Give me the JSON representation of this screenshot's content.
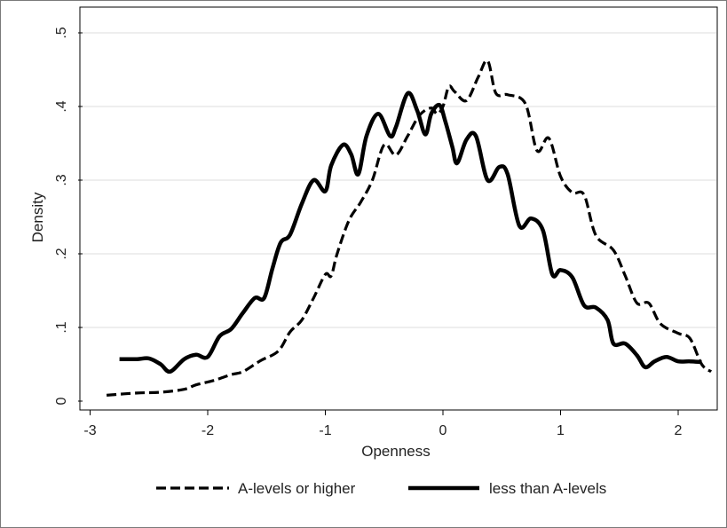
{
  "chart_data": {
    "type": "line",
    "title": "",
    "xlabel": "Openness",
    "ylabel": "Density",
    "xlim": [
      -3.1,
      2.3
    ],
    "ylim": [
      0,
      0.5
    ],
    "xticks": [
      -3,
      -2,
      -1,
      0,
      1,
      2
    ],
    "xtick_labels": [
      "-3",
      "-2",
      "-1",
      "0",
      "1",
      "2"
    ],
    "yticks": [
      0,
      0.1,
      0.2,
      0.3,
      0.4,
      0.5
    ],
    "ytick_labels": [
      "0",
      ".1",
      ".2",
      ".3",
      ".4",
      ".5"
    ],
    "grid": true,
    "legend": "bottom",
    "series": [
      {
        "name": "A-levels or higher",
        "style": "dashed",
        "color": "#000000",
        "points": [
          [
            -2.86,
            0.008
          ],
          [
            -2.6,
            0.011
          ],
          [
            -2.4,
            0.012
          ],
          [
            -2.2,
            0.016
          ],
          [
            -2.1,
            0.022
          ],
          [
            -1.95,
            0.028
          ],
          [
            -1.8,
            0.036
          ],
          [
            -1.7,
            0.04
          ],
          [
            -1.55,
            0.055
          ],
          [
            -1.4,
            0.068
          ],
          [
            -1.3,
            0.094
          ],
          [
            -1.2,
            0.11
          ],
          [
            -1.1,
            0.14
          ],
          [
            -1.0,
            0.172
          ],
          [
            -0.95,
            0.17
          ],
          [
            -0.9,
            0.2
          ],
          [
            -0.8,
            0.245
          ],
          [
            -0.7,
            0.27
          ],
          [
            -0.6,
            0.3
          ],
          [
            -0.5,
            0.348
          ],
          [
            -0.4,
            0.334
          ],
          [
            -0.3,
            0.36
          ],
          [
            -0.2,
            0.388
          ],
          [
            -0.1,
            0.398
          ],
          [
            -0.05,
            0.39
          ],
          [
            0.0,
            0.4
          ],
          [
            0.05,
            0.427
          ],
          [
            0.1,
            0.42
          ],
          [
            0.2,
            0.408
          ],
          [
            0.3,
            0.44
          ],
          [
            0.38,
            0.462
          ],
          [
            0.45,
            0.418
          ],
          [
            0.55,
            0.416
          ],
          [
            0.7,
            0.404
          ],
          [
            0.8,
            0.34
          ],
          [
            0.9,
            0.357
          ],
          [
            1.0,
            0.305
          ],
          [
            1.1,
            0.283
          ],
          [
            1.2,
            0.28
          ],
          [
            1.3,
            0.225
          ],
          [
            1.45,
            0.205
          ],
          [
            1.55,
            0.17
          ],
          [
            1.65,
            0.133
          ],
          [
            1.75,
            0.133
          ],
          [
            1.85,
            0.105
          ],
          [
            2.0,
            0.092
          ],
          [
            2.1,
            0.085
          ],
          [
            2.2,
            0.05
          ],
          [
            2.28,
            0.04
          ]
        ]
      },
      {
        "name": "less than A-levels",
        "style": "solid",
        "color": "#000000",
        "points": [
          [
            -2.75,
            0.057
          ],
          [
            -2.6,
            0.057
          ],
          [
            -2.5,
            0.058
          ],
          [
            -2.4,
            0.05
          ],
          [
            -2.32,
            0.04
          ],
          [
            -2.2,
            0.057
          ],
          [
            -2.1,
            0.063
          ],
          [
            -2.0,
            0.06
          ],
          [
            -1.9,
            0.088
          ],
          [
            -1.8,
            0.098
          ],
          [
            -1.7,
            0.12
          ],
          [
            -1.6,
            0.14
          ],
          [
            -1.52,
            0.14
          ],
          [
            -1.45,
            0.18
          ],
          [
            -1.38,
            0.215
          ],
          [
            -1.3,
            0.226
          ],
          [
            -1.2,
            0.268
          ],
          [
            -1.1,
            0.3
          ],
          [
            -1.0,
            0.285
          ],
          [
            -0.95,
            0.32
          ],
          [
            -0.85,
            0.348
          ],
          [
            -0.78,
            0.335
          ],
          [
            -0.72,
            0.308
          ],
          [
            -0.65,
            0.36
          ],
          [
            -0.55,
            0.39
          ],
          [
            -0.45,
            0.36
          ],
          [
            -0.4,
            0.372
          ],
          [
            -0.3,
            0.418
          ],
          [
            -0.22,
            0.395
          ],
          [
            -0.15,
            0.362
          ],
          [
            -0.1,
            0.39
          ],
          [
            -0.03,
            0.402
          ],
          [
            0.02,
            0.38
          ],
          [
            0.08,
            0.345
          ],
          [
            0.12,
            0.323
          ],
          [
            0.2,
            0.355
          ],
          [
            0.28,
            0.36
          ],
          [
            0.38,
            0.3
          ],
          [
            0.48,
            0.318
          ],
          [
            0.55,
            0.308
          ],
          [
            0.65,
            0.238
          ],
          [
            0.75,
            0.248
          ],
          [
            0.85,
            0.232
          ],
          [
            0.93,
            0.172
          ],
          [
            1.0,
            0.178
          ],
          [
            1.1,
            0.168
          ],
          [
            1.2,
            0.13
          ],
          [
            1.3,
            0.127
          ],
          [
            1.4,
            0.11
          ],
          [
            1.45,
            0.078
          ],
          [
            1.55,
            0.078
          ],
          [
            1.65,
            0.062
          ],
          [
            1.72,
            0.046
          ],
          [
            1.8,
            0.054
          ],
          [
            1.9,
            0.06
          ],
          [
            2.0,
            0.054
          ],
          [
            2.1,
            0.054
          ],
          [
            2.2,
            0.053
          ]
        ]
      }
    ]
  }
}
